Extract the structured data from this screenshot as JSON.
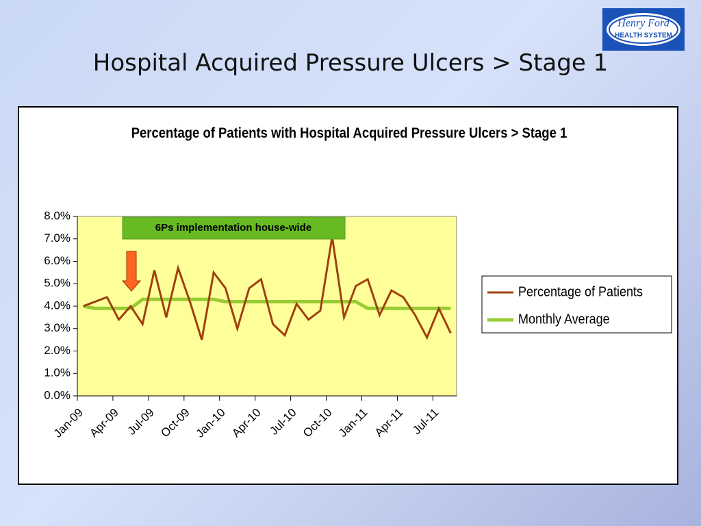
{
  "slide_title": "Hospital Acquired Pressure Ulcers > Stage 1",
  "logo": {
    "line1": "Henry Ford",
    "line2": "HEALTH SYSTEM"
  },
  "chart_data": {
    "type": "line",
    "title": "Percentage of Patients with Hospital Acquired Pressure Ulcers > Stage 1",
    "annotation": "6Ps implementation house-wide",
    "categories": [
      "Jan-09",
      null,
      null,
      "Apr-09",
      null,
      null,
      "Jul-09",
      null,
      null,
      "Oct-09",
      null,
      null,
      "Jan-10",
      null,
      null,
      "Apr-10",
      null,
      null,
      "Jul-10",
      null,
      null,
      "Oct-10",
      null,
      null,
      "Jan-11",
      null,
      null,
      "Apr-11",
      null,
      null,
      "Jul-11",
      null
    ],
    "series": [
      {
        "name": "Percentage of Patients",
        "color": "#a0400f",
        "values": [
          4.0,
          4.2,
          4.4,
          3.4,
          4.0,
          3.2,
          5.6,
          3.5,
          5.7,
          4.2,
          2.5,
          5.5,
          4.8,
          3.0,
          4.8,
          5.2,
          3.2,
          2.7,
          4.1,
          3.4,
          3.8,
          7.1,
          3.5,
          4.9,
          5.2,
          3.6,
          4.7,
          4.4,
          3.6,
          2.6,
          3.9,
          2.8
        ]
      },
      {
        "name": "Monthly Average",
        "color": "#99cc33",
        "values": [
          4.0,
          3.9,
          3.9,
          3.9,
          3.9,
          4.3,
          4.3,
          4.3,
          4.3,
          4.3,
          4.3,
          4.3,
          4.2,
          4.2,
          4.2,
          4.2,
          4.2,
          4.2,
          4.2,
          4.2,
          4.2,
          4.2,
          4.2,
          4.2,
          3.9,
          3.9,
          3.9,
          3.9,
          3.9,
          3.9,
          3.9,
          3.9
        ]
      }
    ],
    "ylim": [
      0,
      8
    ],
    "yticks": [
      {
        "value": 0,
        "label": "0.0%"
      },
      {
        "value": 1,
        "label": "1.0%"
      },
      {
        "value": 2,
        "label": "2.0%"
      },
      {
        "value": 3,
        "label": "3.0%"
      },
      {
        "value": 4,
        "label": "4.0%"
      },
      {
        "value": 5,
        "label": "5.0%"
      },
      {
        "value": 6,
        "label": "6.0%"
      },
      {
        "value": 7,
        "label": "7.0%"
      },
      {
        "value": 8,
        "label": "8.0%"
      }
    ],
    "plot_background": "#ffff99",
    "legend": "right"
  }
}
